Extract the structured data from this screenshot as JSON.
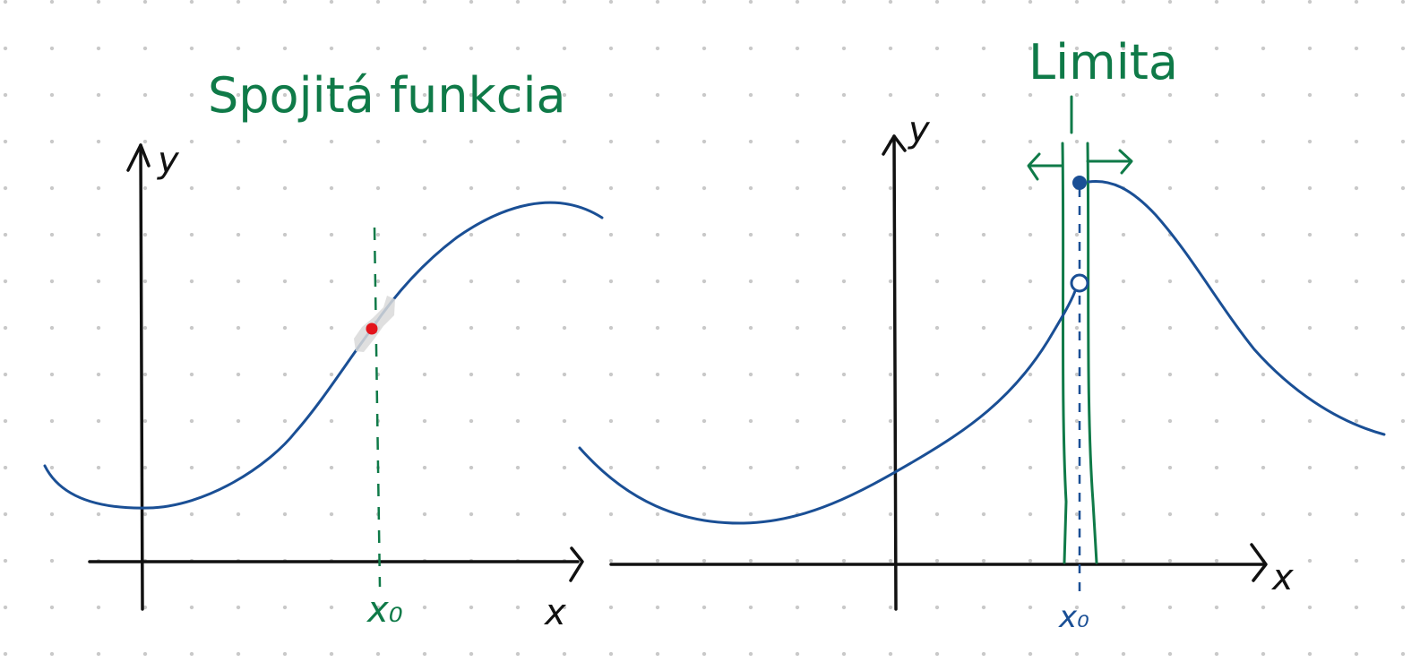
{
  "colors": {
    "background": "#ffffff",
    "dot_grid": "#c9c9c9",
    "axis": "#111111",
    "curve": "#1a4f95",
    "green": "#0f7a48",
    "point_red": "#e3141b",
    "highlight": "#d6d6d6"
  },
  "left_panel": {
    "title": "Spojitá funkcia",
    "y_label": "y",
    "x_label": "x",
    "x0_label": "x₀"
  },
  "right_panel": {
    "title": "Limita",
    "y_label": "y",
    "x_label": "x",
    "x0_label": "x₀"
  }
}
